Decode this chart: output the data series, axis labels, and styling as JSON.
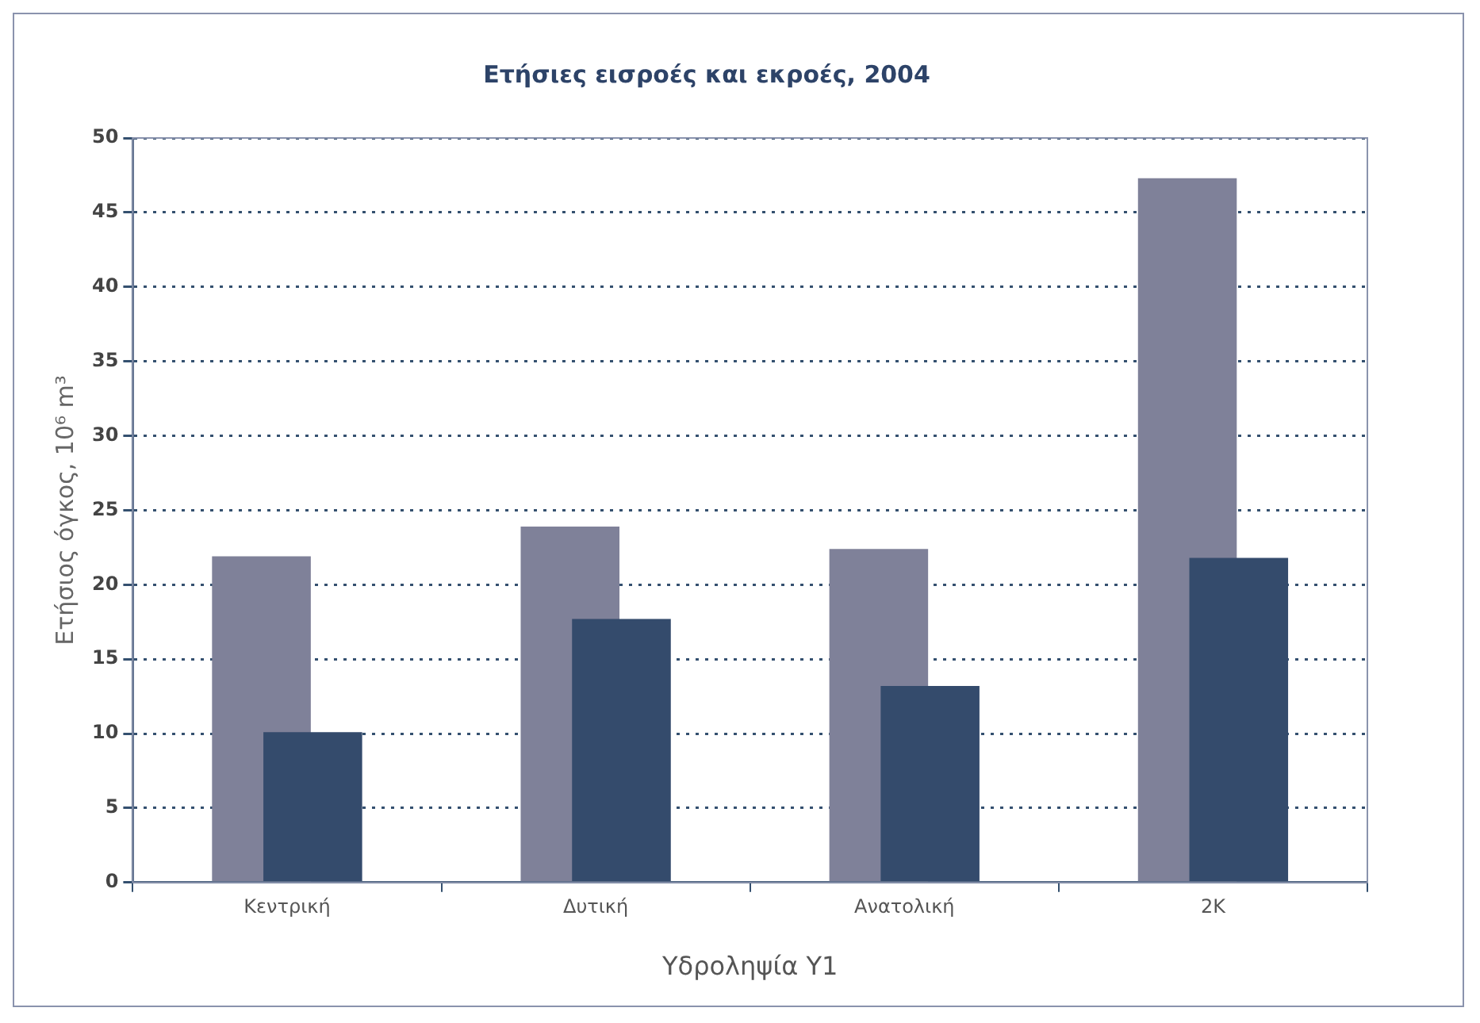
{
  "chart_data": {
    "type": "bar",
    "title": "Ετήσιες εισροές και εκροές, 2004",
    "xlabel": "Υδροληψία Υ1",
    "ylabel": "Ετήσιος όγκος, 10⁶ m³",
    "categories": [
      "Κεντρική",
      "Δυτική",
      "Ανατολική",
      "2Κ"
    ],
    "series": [
      {
        "color": "#7f8199",
        "values": [
          21.9,
          23.9,
          22.4,
          47.3
        ]
      },
      {
        "color": "#344b6c",
        "values": [
          10.1,
          17.7,
          13.2,
          21.8
        ]
      }
    ],
    "ylim": [
      0,
      50
    ],
    "yticks": [
      0,
      5,
      10,
      15,
      20,
      25,
      30,
      35,
      40,
      45,
      50
    ],
    "grid": "y",
    "legend": false
  }
}
